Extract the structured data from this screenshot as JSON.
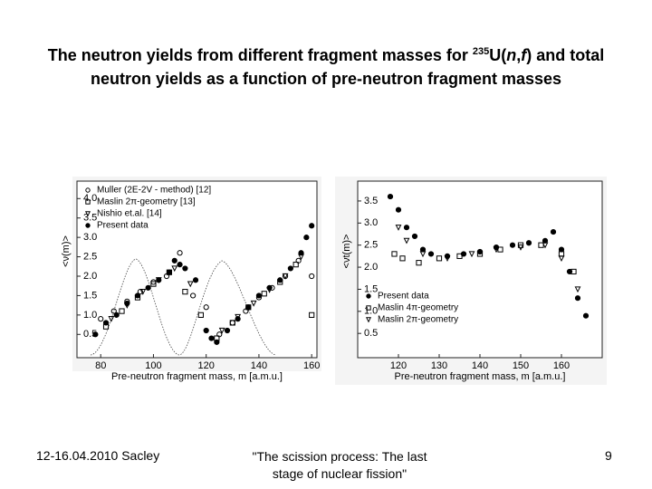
{
  "title_parts": [
    {
      "text": "The neutron yields from different fragment masses for "
    },
    {
      "text": "235",
      "sup": true
    },
    {
      "text": "U("
    },
    {
      "text": "n",
      "italic": true
    },
    {
      "text": ","
    },
    {
      "text": "f",
      "italic": true
    },
    {
      "text": ") and total neutron yields as a function of pre-neutron fragment masses"
    }
  ],
  "chart_data": [
    {
      "type": "scatter",
      "xlabel": "Pre-neutron fragment mass, m [a.m.u.]",
      "ylabel": "<ν(m)>",
      "xlim": [
        71,
        162
      ],
      "ylim": [
        -0.1,
        4.45
      ],
      "xticks": [
        80,
        100,
        120,
        140,
        160
      ],
      "yticks": [
        0.5,
        {
          "value": 1,
          "label": "1.0"
        },
        1.5,
        {
          "value": 2,
          "label": "2.0"
        },
        2.5,
        {
          "value": 3,
          "label": "3.0"
        },
        3.5,
        {
          "value": 4,
          "label": "4.0"
        }
      ],
      "legend": "upper left",
      "series": [
        {
          "name": "Muller (2E-2V - method) [12]",
          "color": "#000000",
          "marker": "open-circle",
          "x": [
            80,
            85,
            90,
            95,
            100,
            105,
            110,
            115,
            120,
            125,
            130,
            135,
            140,
            145,
            150,
            155,
            160
          ],
          "values": [
            0.9,
            1.1,
            1.35,
            1.6,
            1.85,
            2.0,
            2.6,
            1.5,
            1.2,
            0.5,
            0.8,
            1.1,
            1.45,
            1.7,
            2.0,
            2.4,
            2.0
          ]
        },
        {
          "name": "Maslin 2π-geometry [13]",
          "color": "#000000",
          "marker": "open-square",
          "x": [
            82,
            88,
            94,
            100,
            106,
            112,
            118,
            124,
            130,
            136,
            142,
            148,
            154,
            160
          ],
          "values": [
            0.7,
            1.1,
            1.45,
            1.8,
            2.1,
            1.6,
            1.0,
            0.4,
            0.8,
            1.2,
            1.55,
            1.85,
            2.3,
            1.0
          ]
        },
        {
          "name": "Nishio et.al. [14]",
          "color": "#000000",
          "marker": "open-triangle",
          "x": [
            84,
            90,
            96,
            102,
            108,
            114,
            126,
            132,
            138,
            144,
            150,
            156
          ],
          "values": [
            0.9,
            1.25,
            1.6,
            1.9,
            2.2,
            1.8,
            0.6,
            0.95,
            1.3,
            1.65,
            2.0,
            2.5
          ]
        },
        {
          "name": "Present data",
          "color": "#000000",
          "marker": "filled-circle",
          "x": [
            78,
            82,
            86,
            90,
            94,
            98,
            102,
            106,
            108,
            110,
            112,
            116,
            120,
            122,
            124,
            128,
            132,
            136,
            140,
            144,
            148,
            152,
            156,
            158,
            160
          ],
          "values": [
            0.5,
            0.8,
            1.0,
            1.3,
            1.5,
            1.7,
            1.9,
            2.1,
            2.4,
            2.3,
            2.2,
            1.9,
            0.6,
            0.4,
            0.3,
            0.6,
            0.9,
            1.2,
            1.5,
            1.7,
            1.9,
            2.2,
            2.6,
            3.0,
            3.3
          ]
        }
      ]
    },
    {
      "type": "scatter",
      "xlabel": "Pre-neutron fragment mass, m [a.m.u.]",
      "ylabel": "<νt(m)>",
      "xlim": [
        110,
        170
      ],
      "ylim": [
        -0.05,
        3.95
      ],
      "xticks": [
        120,
        130,
        140,
        150,
        160
      ],
      "yticks": [
        0.5,
        {
          "value": 1,
          "label": "1.0"
        },
        1.5,
        {
          "value": 2,
          "label": "2.0"
        },
        2.5,
        {
          "value": 3,
          "label": "3.0"
        },
        3.5
      ],
      "legend": "lower left",
      "series": [
        {
          "name": "Present data",
          "color": "#000000",
          "marker": "filled-circle",
          "x": [
            118,
            120,
            122,
            124,
            126,
            128,
            132,
            136,
            140,
            144,
            148,
            152,
            156,
            158,
            160,
            162,
            164,
            166
          ],
          "values": [
            3.6,
            3.3,
            2.9,
            2.7,
            2.4,
            2.3,
            2.25,
            2.3,
            2.35,
            2.45,
            2.5,
            2.55,
            2.6,
            2.8,
            2.4,
            1.9,
            1.3,
            0.9
          ]
        },
        {
          "name": "Maslin 4π-geometry",
          "color": "#000000",
          "marker": "open-square",
          "x": [
            119,
            121,
            125,
            130,
            135,
            140,
            145,
            150,
            155,
            160,
            163
          ],
          "values": [
            2.3,
            2.2,
            2.1,
            2.2,
            2.25,
            2.3,
            2.4,
            2.5,
            2.5,
            2.3,
            1.9
          ]
        },
        {
          "name": "Maslin 2π-geometry",
          "color": "#000000",
          "marker": "open-triangle",
          "x": [
            120,
            122,
            126,
            132,
            138,
            144,
            150,
            156,
            160,
            164
          ],
          "values": [
            2.9,
            2.6,
            2.3,
            2.2,
            2.3,
            2.4,
            2.45,
            2.5,
            2.2,
            1.5
          ]
        }
      ]
    }
  ],
  "footer": {
    "date": "12-16.04.2010  Sacley",
    "talk": "\"The scission process: The last stage of nuclear fission\"",
    "page": "9"
  }
}
